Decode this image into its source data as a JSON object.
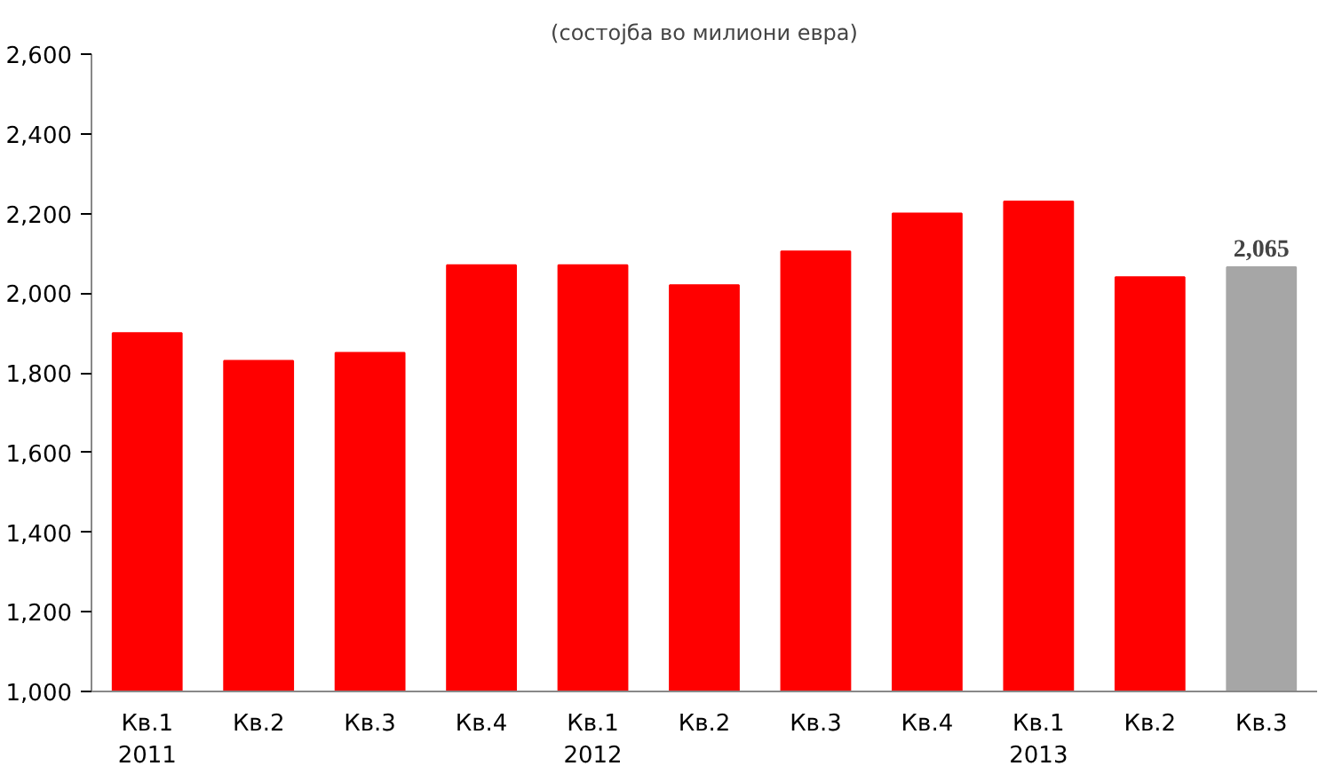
{
  "chart_data": {
    "type": "bar",
    "subtitle": "(состојба во милиони евра)",
    "categories": [
      "Кв.1\n2011",
      "Кв.2",
      "Кв.3",
      "Кв.4",
      "Кв.1\n2012",
      "Кв.2",
      "Кв.3",
      "Кв.4",
      "Кв.1\n2013",
      "Кв.2",
      "Кв.3"
    ],
    "values": [
      1900,
      1830,
      1850,
      2070,
      2070,
      2020,
      2105,
      2200,
      2230,
      2040,
      2065
    ],
    "colors": [
      "#ff0000",
      "#ff0000",
      "#ff0000",
      "#ff0000",
      "#ff0000",
      "#ff0000",
      "#ff0000",
      "#ff0000",
      "#ff0000",
      "#ff0000",
      "#a6a6a6"
    ],
    "value_labels": [
      null,
      null,
      null,
      null,
      null,
      null,
      null,
      null,
      null,
      null,
      "2,065"
    ],
    "ylim": [
      1000,
      2600
    ],
    "yticks": [
      {
        "value": 1000,
        "label": "1,000"
      },
      {
        "value": 1200,
        "label": "1,200"
      },
      {
        "value": 1400,
        "label": "1,400"
      },
      {
        "value": 1600,
        "label": "1,600"
      },
      {
        "value": 1800,
        "label": "1,800"
      },
      {
        "value": 2000,
        "label": "2,000"
      },
      {
        "value": 2200,
        "label": "2,200"
      },
      {
        "value": 2400,
        "label": "2,400"
      },
      {
        "value": 2600,
        "label": "2,600"
      }
    ],
    "grid": false
  }
}
